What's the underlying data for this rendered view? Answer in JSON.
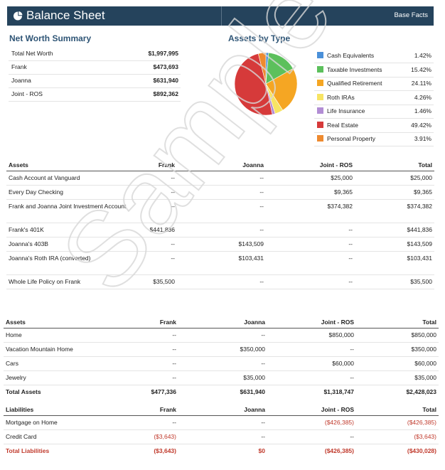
{
  "header": {
    "title": "Balance Sheet",
    "subtitle": "Base Facts",
    "icon": "pie-chart-icon",
    "bg": "#25435c"
  },
  "net_worth": {
    "title": "Net Worth Summary",
    "rows": [
      {
        "label": "Total Net Worth",
        "value": "$1,997,995"
      },
      {
        "label": "Frank",
        "value": "$473,693"
      },
      {
        "label": "Joanna",
        "value": "$631,940"
      },
      {
        "label": "Joint - ROS",
        "value": "$892,362"
      }
    ]
  },
  "assets_by_type": {
    "title": "Assets by Type",
    "legend": [
      {
        "label": "Cash Equivalents",
        "value": "1.42%",
        "color": "#4a90d9"
      },
      {
        "label": "Taxable Investments",
        "value": "15.42%",
        "color": "#5cc05c"
      },
      {
        "label": "Qualified Retirement",
        "value": "24.11%",
        "color": "#f5a623"
      },
      {
        "label": "Roth IRAs",
        "value": "4.26%",
        "color": "#f7e463"
      },
      {
        "label": "Life Insurance",
        "value": "1.46%",
        "color": "#b28dd4"
      },
      {
        "label": "Real Estate",
        "value": "49.42%",
        "color": "#d63a3a"
      },
      {
        "label": "Personal Property",
        "value": "3.91%",
        "color": "#ee8a2f"
      }
    ]
  },
  "chart_data": {
    "type": "pie",
    "title": "Assets by Type",
    "categories": [
      "Cash Equivalents",
      "Taxable Investments",
      "Qualified Retirement",
      "Roth IRAs",
      "Life Insurance",
      "Real Estate",
      "Personal Property"
    ],
    "values": [
      1.42,
      15.42,
      24.11,
      4.26,
      1.46,
      49.42,
      3.91
    ],
    "colors": [
      "#4a90d9",
      "#5cc05c",
      "#f5a623",
      "#f7e463",
      "#b28dd4",
      "#d63a3a",
      "#ee8a2f"
    ]
  },
  "table1": {
    "headers": [
      "Assets",
      "Frank",
      "Joanna",
      "Joint - ROS",
      "Total"
    ],
    "rows": [
      [
        "Cash Account at Vanguard",
        "--",
        "--",
        "$25,000",
        "$25,000"
      ],
      [
        "Every Day Checking",
        "--",
        "--",
        "$9,365",
        "$9,365"
      ],
      [
        "Frank and Joanna Joint Investment Account",
        "--",
        "--",
        "$374,382",
        "$374,382"
      ],
      [
        "Frank's 401K",
        "$441,836",
        "--",
        "--",
        "$441,836"
      ],
      [
        "Joanna's 403B",
        "--",
        "$143,509",
        "--",
        "$143,509"
      ],
      [
        "Joanna's Roth IRA (converted)",
        "--",
        "$103,431",
        "--",
        "$103,431"
      ],
      [
        "Whole Life Policy on Frank",
        "$35,500",
        "--",
        "--",
        "$35,500"
      ]
    ]
  },
  "table2": {
    "headers": [
      "Assets",
      "Frank",
      "Joanna",
      "Joint - ROS",
      "Total"
    ],
    "rows": [
      [
        "Home",
        "--",
        "--",
        "$850,000",
        "$850,000"
      ],
      [
        "Vacation Mountain Home",
        "--",
        "$350,000",
        "--",
        "$350,000"
      ],
      [
        "Cars",
        "--",
        "--",
        "$60,000",
        "$60,000"
      ],
      [
        "Jewelry",
        "--",
        "$35,000",
        "--",
        "$35,000"
      ]
    ],
    "total_assets": [
      "Total Assets",
      "$477,336",
      "$631,940",
      "$1,318,747",
      "$2,428,023"
    ],
    "liab_headers": [
      "Liabilities",
      "Frank",
      "Joanna",
      "Joint - ROS",
      "Total"
    ],
    "liab_rows": [
      [
        "Mortgage on Home",
        "--",
        "--",
        "($426,385)",
        "($426,385)"
      ],
      [
        "Credit Card",
        "($3,643)",
        "--",
        "--",
        "($3,643)"
      ]
    ],
    "total_liabilities": [
      "Total Liabilities",
      "($3,643)",
      "$0",
      "($426,385)",
      "($430,028)"
    ]
  },
  "watermark": {
    "text": "Sample"
  }
}
